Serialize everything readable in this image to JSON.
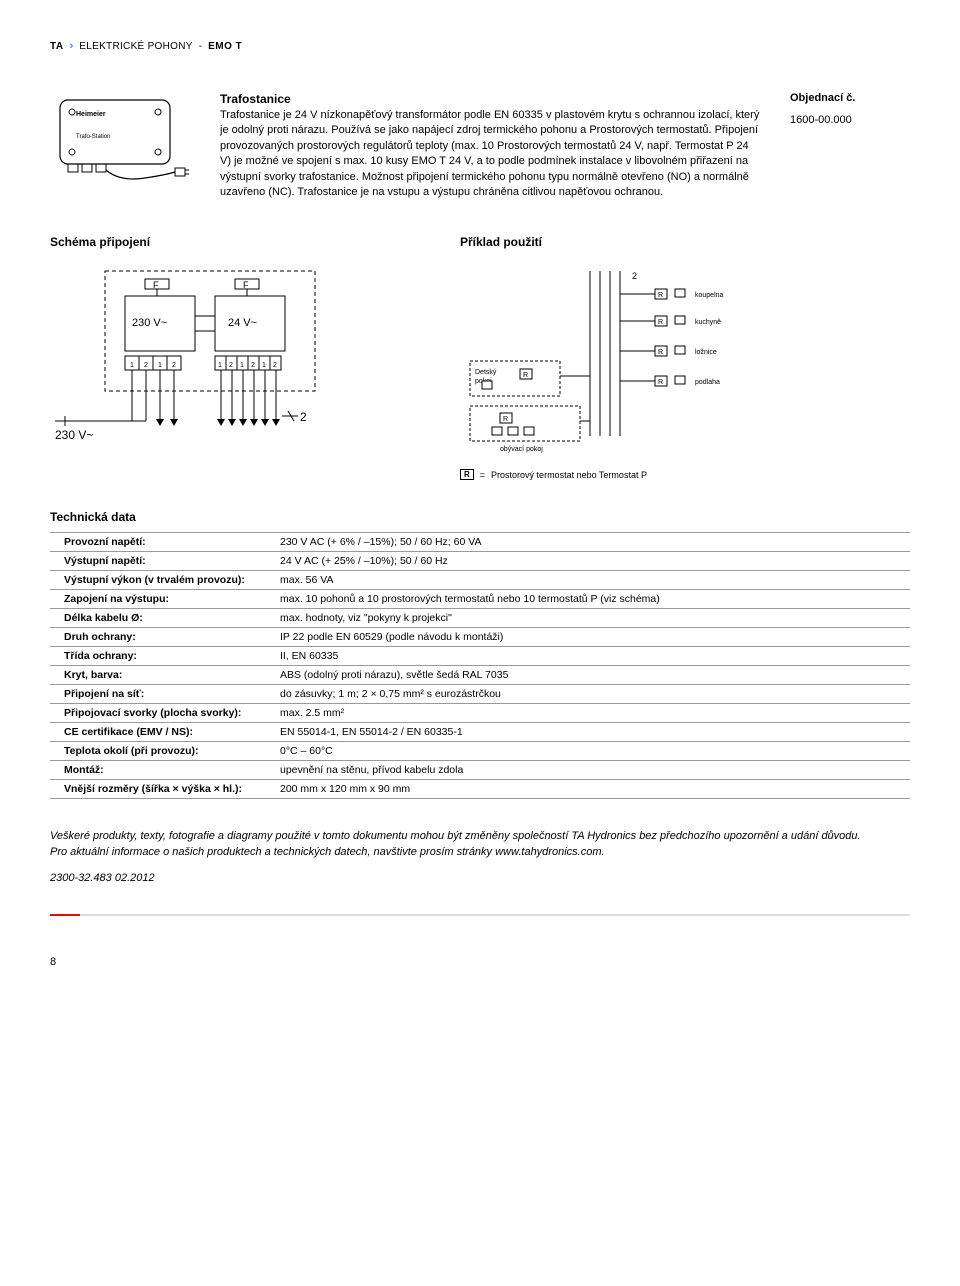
{
  "header": {
    "brand": "TA",
    "category": "ELEKTRICKÉ POHONY",
    "product": "EMO T"
  },
  "device": {
    "brand_label": "Heimeier",
    "sub_label": "Trafo-Station"
  },
  "description": {
    "title": "Trafostanice",
    "body": "Trafostanice je 24 V nízkonapěťový transformátor podle EN 60335 v plastovém krytu s ochrannou izolací, který je odolný proti nárazu. Používá se jako napájecí zdroj termického pohonu a Prostorových termostatů. Připojení provozovaných prostorových regulátorů teploty (max. 10 Prostorových termostatů 24 V, např. Termostat P 24 V) je možné ve spojení s max. 10 kusy EMO T 24 V, a to podle podmínek instalace v libovolném přiřazení na výstupní svorky trafostanice. Možnost připojení termického pohonu typu normálně otevřeno (NO) a normálně uzavřeno (NC). Trafostanice je na vstupu a výstupu chráněna citlivou napěťovou ochranou."
  },
  "order": {
    "label": "Objednací č.",
    "value": "1600-00.000"
  },
  "schema": {
    "connection_title": "Schéma připojení",
    "example_title": "Příklad použití",
    "v230_in": "230 V~",
    "fuse": "F",
    "v230": "230 V~",
    "v24": "24 V~",
    "two": "2",
    "rooms": {
      "detsky": "Detský pokoj",
      "obyvaci": "obývací pokoj",
      "koupelna": "koupelna",
      "kuchyne": "kuchyně",
      "loznice": "ložnice",
      "podlaha": "podlaha"
    },
    "legend_symbol": "R",
    "legend_eq": "=",
    "legend_text": "Prostorový termostat nebo Termostat P"
  },
  "tech": {
    "title": "Technická data",
    "rows": [
      {
        "label": "Provozní napětí:",
        "value": "230 V AC (+ 6% / –15%); 50 / 60 Hz; 60 VA"
      },
      {
        "label": "Výstupní napětí:",
        "value": "24 V AC (+ 25% / –10%); 50 / 60 Hz"
      },
      {
        "label": "Výstupní výkon (v trvalém provozu):",
        "value": "max. 56 VA"
      },
      {
        "label": "Zapojení na výstupu:",
        "value": "max. 10 pohonů a 10 prostorových termostatů nebo 10 termostatů P (viz schéma)"
      },
      {
        "label": "Délka kabelu Ø:",
        "value": "max. hodnoty, viz \"pokyny k projekci\""
      },
      {
        "label": "Druh ochrany:",
        "value": "IP 22 podle EN 60529 (podle návodu k montáži)"
      },
      {
        "label": "Třída ochrany:",
        "value": "II, EN 60335"
      },
      {
        "label": "Kryt, barva:",
        "value": "ABS (odolný proti nárazu), světle šedá RAL 7035"
      },
      {
        "label": "Připojení na síť:",
        "value": "do zásuvky; 1 m; 2 × 0,75 mm² s eurozástrčkou"
      },
      {
        "label": "Připojovací svorky (plocha svorky):",
        "value": "max. 2.5 mm²"
      },
      {
        "label": "CE certifikace (EMV / NS):",
        "value": "EN 55014-1, EN 55014-2 / EN 60335-1"
      },
      {
        "label": "Teplota okolí (při provozu):",
        "value": "0°C – 60°C"
      },
      {
        "label": "Montáž:",
        "value": "upevnění na stěnu, přívod kabelu zdola"
      },
      {
        "label": "Vnější rozměry (šířka × výška × hl.):",
        "value": "200 mm x 120 mm x 90 mm"
      }
    ]
  },
  "footer": {
    "note1": "Veškeré produkty, texty, fotografie a diagramy použité v tomto dokumentu mohou být změněny společností TA Hydronics bez předchozího upozornění a udání důvodu.",
    "note2": "Pro aktuální informace o našich produktech a technických datech, navštivte prosím stránky www.tahydronics.com.",
    "code": "2300-32.483 02.2012",
    "page": "8"
  },
  "colors": {
    "text": "#000000",
    "accent": "#e30613",
    "rule": "#999999",
    "chevron": "#0066cc"
  }
}
